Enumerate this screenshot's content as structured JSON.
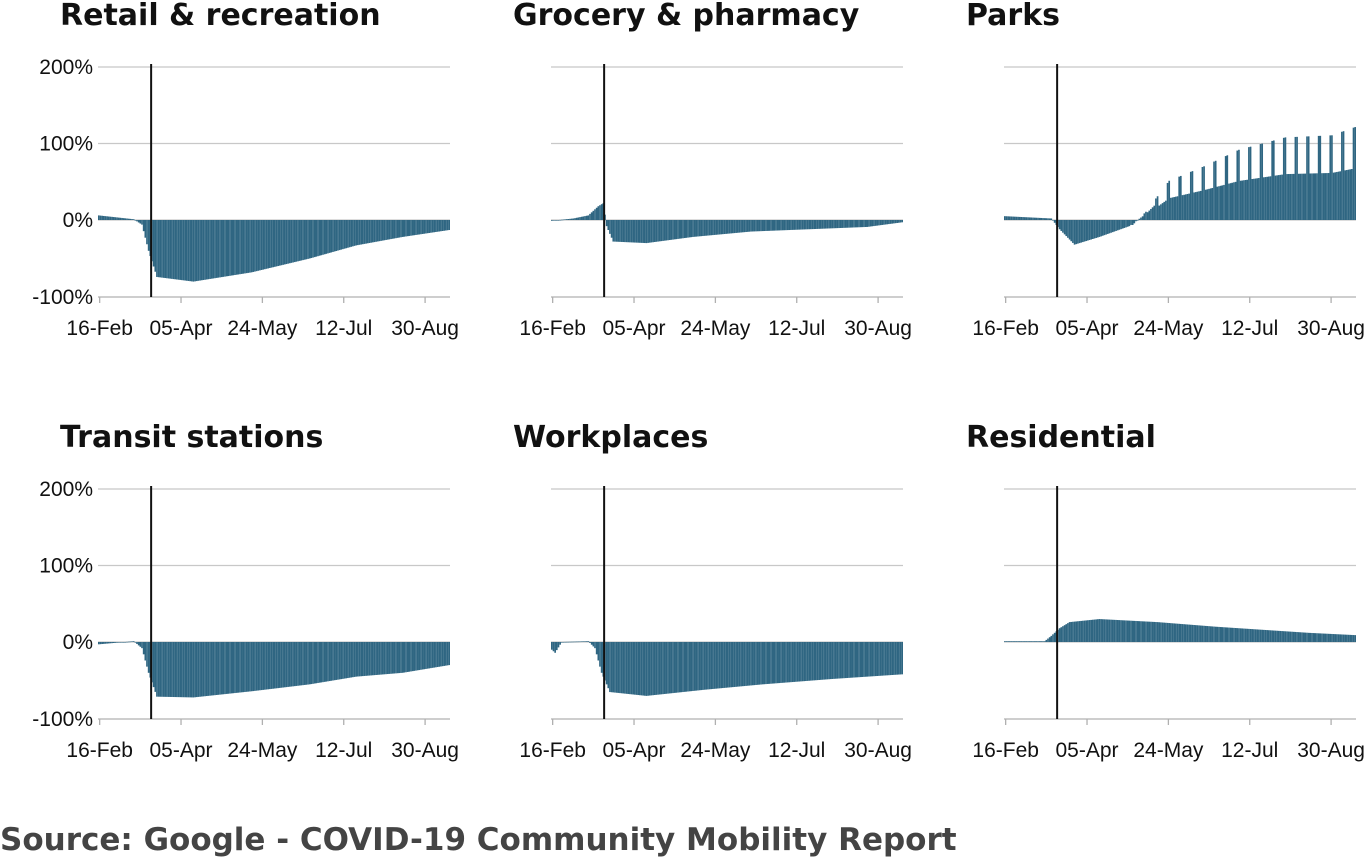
{
  "source": "Source: Google - COVID-19 Community Mobility Report",
  "colors": {
    "bar_fill": "#2f6682",
    "bar_edge": "#b9d7e4",
    "event_line": "#111111",
    "grid": "#c8c8c8"
  },
  "chart_data": [
    {
      "type": "bar",
      "title": "Retail & recreation",
      "x_ticks": [
        "16-Feb",
        "05-Apr",
        "24-May",
        "12-Jul",
        "30-Aug"
      ],
      "y_ticks": [
        "200%",
        "100%",
        "0%",
        "-100%"
      ],
      "ylim": [
        -100,
        200
      ],
      "event_date": "2020-03-18",
      "keyframes": [
        [
          "2020-02-15",
          6
        ],
        [
          "2020-03-07",
          1
        ],
        [
          "2020-03-12",
          -6
        ],
        [
          "2020-03-16",
          -40
        ],
        [
          "2020-03-21",
          -74
        ],
        [
          "2020-04-12",
          -80
        ],
        [
          "2020-05-17",
          -68
        ],
        [
          "2020-06-21",
          -50
        ],
        [
          "2020-07-19",
          -33
        ],
        [
          "2020-08-16",
          -22
        ],
        [
          "2020-09-13",
          -13
        ]
      ]
    },
    {
      "type": "bar",
      "title": "Grocery & pharmacy",
      "x_ticks": [
        "16-Feb",
        "05-Apr",
        "24-May",
        "12-Jul",
        "30-Aug"
      ],
      "y_ticks": [
        "200%",
        "100%",
        "0%",
        "-100%"
      ],
      "ylim": [
        -100,
        200
      ],
      "event_date": "2020-03-18",
      "keyframes": [
        [
          "2020-02-15",
          -1
        ],
        [
          "2020-02-28",
          2
        ],
        [
          "2020-03-08",
          6
        ],
        [
          "2020-03-14",
          18
        ],
        [
          "2020-03-17",
          22
        ],
        [
          "2020-03-19",
          -8
        ],
        [
          "2020-03-23",
          -28
        ],
        [
          "2020-04-12",
          -30
        ],
        [
          "2020-05-10",
          -22
        ],
        [
          "2020-06-14",
          -15
        ],
        [
          "2020-07-19",
          -12
        ],
        [
          "2020-08-23",
          -9
        ],
        [
          "2020-09-13",
          -3
        ]
      ]
    },
    {
      "type": "bar",
      "title": "Parks",
      "x_ticks": [
        "16-Feb",
        "05-Apr",
        "24-May",
        "12-Jul",
        "30-Aug"
      ],
      "y_ticks": [
        "200%",
        "100%",
        "0%",
        "-100%"
      ],
      "ylim": [
        -100,
        200
      ],
      "event_date": "2020-03-18",
      "keyframes": [
        [
          "2020-02-15",
          5
        ],
        [
          "2020-03-14",
          2
        ],
        [
          "2020-03-19",
          -12
        ],
        [
          "2020-03-28",
          -32
        ],
        [
          "2020-04-12",
          -22
        ],
        [
          "2020-04-30",
          -8
        ],
        [
          "2020-05-10",
          8
        ],
        [
          "2020-05-24",
          38
        ],
        [
          "2020-06-14",
          52
        ],
        [
          "2020-07-05",
          68
        ],
        [
          "2020-08-02",
          80
        ],
        [
          "2020-08-30",
          82
        ],
        [
          "2020-09-13",
          90
        ]
      ]
    },
    {
      "type": "bar",
      "title": "Transit stations",
      "x_ticks": [
        "16-Feb",
        "05-Apr",
        "24-May",
        "12-Jul",
        "30-Aug"
      ],
      "y_ticks": [
        "200%",
        "100%",
        "0%",
        "-100%"
      ],
      "ylim": [
        -100,
        200
      ],
      "event_date": "2020-03-18",
      "keyframes": [
        [
          "2020-02-15",
          -3
        ],
        [
          "2020-03-07",
          1
        ],
        [
          "2020-03-12",
          -8
        ],
        [
          "2020-03-16",
          -40
        ],
        [
          "2020-03-21",
          -71
        ],
        [
          "2020-04-12",
          -72
        ],
        [
          "2020-05-17",
          -64
        ],
        [
          "2020-06-21",
          -55
        ],
        [
          "2020-07-19",
          -45
        ],
        [
          "2020-08-16",
          -40
        ],
        [
          "2020-09-13",
          -30
        ]
      ]
    },
    {
      "type": "bar",
      "title": "Workplaces",
      "x_ticks": [
        "16-Feb",
        "05-Apr",
        "24-May",
        "12-Jul",
        "30-Aug"
      ],
      "y_ticks": [
        "200%",
        "100%",
        "0%",
        "-100%"
      ],
      "ylim": [
        -100,
        200
      ],
      "event_date": "2020-03-18",
      "keyframes": [
        [
          "2020-02-15",
          -10
        ],
        [
          "2020-02-17",
          -14
        ],
        [
          "2020-02-21",
          0
        ],
        [
          "2020-03-08",
          1
        ],
        [
          "2020-03-12",
          -8
        ],
        [
          "2020-03-16",
          -40
        ],
        [
          "2020-03-21",
          -65
        ],
        [
          "2020-04-12",
          -70
        ],
        [
          "2020-05-17",
          -62
        ],
        [
          "2020-06-21",
          -55
        ],
        [
          "2020-08-02",
          -48
        ],
        [
          "2020-09-13",
          -42
        ]
      ]
    },
    {
      "type": "bar",
      "title": "Residential",
      "x_ticks": [
        "16-Feb",
        "05-Apr",
        "24-May",
        "12-Jul",
        "30-Aug"
      ],
      "y_ticks": [
        "200%",
        "100%",
        "0%",
        "-100%"
      ],
      "ylim": [
        -100,
        200
      ],
      "event_date": "2020-03-18",
      "keyframes": [
        [
          "2020-02-15",
          1
        ],
        [
          "2020-03-10",
          1
        ],
        [
          "2020-03-14",
          8
        ],
        [
          "2020-03-19",
          18
        ],
        [
          "2020-03-25",
          26
        ],
        [
          "2020-04-12",
          30
        ],
        [
          "2020-05-17",
          26
        ],
        [
          "2020-06-21",
          20
        ],
        [
          "2020-07-19",
          16
        ],
        [
          "2020-08-16",
          12
        ],
        [
          "2020-09-13",
          9
        ]
      ]
    }
  ]
}
